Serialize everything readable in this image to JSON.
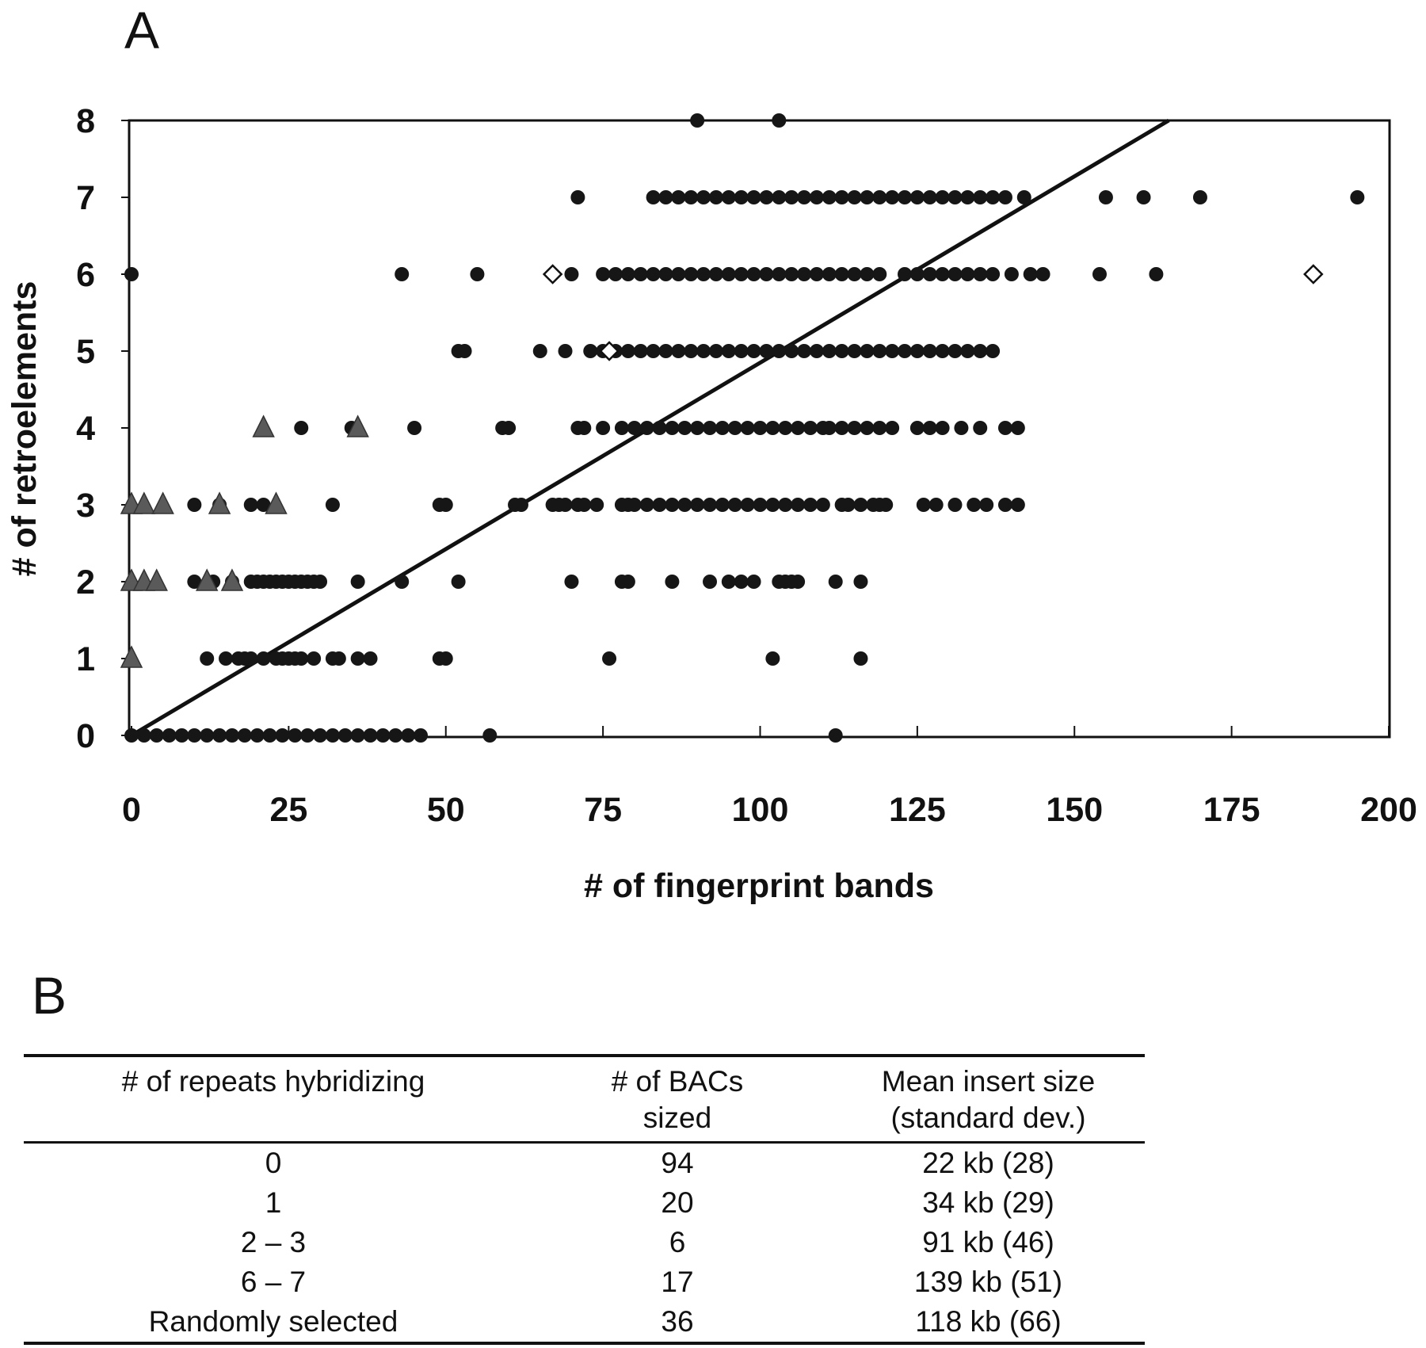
{
  "panel_a_label": "A",
  "panel_b_label": "B",
  "chart_data": {
    "type": "scatter",
    "xlabel": "# of fingerprint bands",
    "ylabel": "# of retroelements",
    "xlim": [
      0,
      200
    ],
    "ylim": [
      0,
      8
    ],
    "xticks": [
      0,
      25,
      50,
      75,
      100,
      125,
      150,
      175,
      200
    ],
    "yticks": [
      0,
      1,
      2,
      3,
      4,
      5,
      6,
      7,
      8
    ],
    "grid": false,
    "legend": "none",
    "colors": {
      "circle": "#161616",
      "triangle": "#5a5a5a",
      "diamond": "#ffffff",
      "line": "#111111"
    },
    "trendline": {
      "x": [
        0,
        165
      ],
      "y": [
        0,
        8
      ]
    },
    "series": [
      {
        "marker": "circle",
        "x": [
          0,
          2,
          4,
          6,
          8,
          10,
          12,
          14,
          16,
          18,
          20,
          22,
          24,
          26,
          28,
          30,
          32,
          34,
          36,
          38,
          40,
          42,
          44,
          46,
          57,
          112,
          12,
          15,
          17,
          18,
          19,
          21,
          23,
          24,
          25,
          26,
          27,
          29,
          32,
          33,
          36,
          38,
          49,
          50,
          76,
          102,
          116,
          10,
          13,
          16,
          19,
          20,
          21,
          22,
          23,
          24,
          25,
          26,
          27,
          28,
          29,
          30,
          36,
          43,
          52,
          70,
          78,
          79,
          86,
          92,
          95,
          97,
          99,
          103,
          104,
          105,
          106,
          112,
          116,
          10,
          14,
          19,
          21,
          32,
          49,
          50,
          61,
          62,
          67,
          68,
          69,
          71,
          72,
          74,
          78,
          79,
          80,
          82,
          84,
          86,
          88,
          90,
          92,
          94,
          96,
          98,
          100,
          102,
          104,
          106,
          108,
          110,
          113,
          114,
          116,
          118,
          119,
          120,
          126,
          128,
          131,
          134,
          136,
          139,
          141,
          27,
          35,
          45,
          59,
          60,
          71,
          72,
          75,
          78,
          80,
          82,
          84,
          86,
          88,
          90,
          92,
          94,
          96,
          98,
          100,
          102,
          104,
          106,
          108,
          110,
          111,
          113,
          115,
          117,
          119,
          121,
          125,
          127,
          129,
          132,
          135,
          139,
          141,
          52,
          53,
          65,
          69,
          73,
          75,
          77,
          79,
          81,
          83,
          85,
          87,
          89,
          91,
          93,
          95,
          97,
          99,
          101,
          103,
          105,
          107,
          109,
          111,
          113,
          115,
          117,
          119,
          121,
          123,
          125,
          127,
          129,
          131,
          133,
          135,
          137,
          0,
          43,
          55,
          70,
          75,
          77,
          79,
          81,
          83,
          85,
          87,
          89,
          91,
          93,
          95,
          97,
          99,
          101,
          103,
          105,
          107,
          109,
          111,
          113,
          115,
          117,
          119,
          123,
          125,
          127,
          129,
          131,
          133,
          135,
          137,
          140,
          143,
          145,
          154,
          163,
          71,
          83,
          85,
          87,
          89,
          91,
          93,
          95,
          97,
          99,
          101,
          103,
          105,
          107,
          109,
          111,
          113,
          115,
          117,
          119,
          121,
          123,
          125,
          127,
          129,
          131,
          133,
          135,
          137,
          139,
          142,
          155,
          161,
          170,
          195,
          90,
          103
        ],
        "y": [
          0,
          0,
          0,
          0,
          0,
          0,
          0,
          0,
          0,
          0,
          0,
          0,
          0,
          0,
          0,
          0,
          0,
          0,
          0,
          0,
          0,
          0,
          0,
          0,
          0,
          0,
          1,
          1,
          1,
          1,
          1,
          1,
          1,
          1,
          1,
          1,
          1,
          1,
          1,
          1,
          1,
          1,
          1,
          1,
          1,
          1,
          1,
          2,
          2,
          2,
          2,
          2,
          2,
          2,
          2,
          2,
          2,
          2,
          2,
          2,
          2,
          2,
          2,
          2,
          2,
          2,
          2,
          2,
          2,
          2,
          2,
          2,
          2,
          2,
          2,
          2,
          2,
          2,
          2,
          3,
          3,
          3,
          3,
          3,
          3,
          3,
          3,
          3,
          3,
          3,
          3,
          3,
          3,
          3,
          3,
          3,
          3,
          3,
          3,
          3,
          3,
          3,
          3,
          3,
          3,
          3,
          3,
          3,
          3,
          3,
          3,
          3,
          3,
          3,
          3,
          3,
          3,
          3,
          3,
          3,
          3,
          3,
          3,
          3,
          3,
          4,
          4,
          4,
          4,
          4,
          4,
          4,
          4,
          4,
          4,
          4,
          4,
          4,
          4,
          4,
          4,
          4,
          4,
          4,
          4,
          4,
          4,
          4,
          4,
          4,
          4,
          4,
          4,
          4,
          4,
          4,
          4,
          4,
          4,
          4,
          4,
          4,
          4,
          5,
          5,
          5,
          5,
          5,
          5,
          5,
          5,
          5,
          5,
          5,
          5,
          5,
          5,
          5,
          5,
          5,
          5,
          5,
          5,
          5,
          5,
          5,
          5,
          5,
          5,
          5,
          5,
          5,
          5,
          5,
          5,
          5,
          5,
          5,
          5,
          5,
          6,
          6,
          6,
          6,
          6,
          6,
          6,
          6,
          6,
          6,
          6,
          6,
          6,
          6,
          6,
          6,
          6,
          6,
          6,
          6,
          6,
          6,
          6,
          6,
          6,
          6,
          6,
          6,
          6,
          6,
          6,
          6,
          6,
          6,
          6,
          6,
          6,
          6,
          6,
          6,
          7,
          7,
          7,
          7,
          7,
          7,
          7,
          7,
          7,
          7,
          7,
          7,
          7,
          7,
          7,
          7,
          7,
          7,
          7,
          7,
          7,
          7,
          7,
          7,
          7,
          7,
          7,
          7,
          7,
          7,
          7,
          7,
          7,
          7,
          7,
          8,
          8
        ]
      },
      {
        "marker": "triangle",
        "x": [
          0,
          0,
          2,
          4,
          12,
          16,
          0,
          2,
          5,
          14,
          23,
          21,
          36
        ],
        "y": [
          1,
          2,
          2,
          2,
          2,
          2,
          3,
          3,
          3,
          3,
          3,
          4,
          4
        ]
      },
      {
        "marker": "diamond",
        "x": [
          76,
          67,
          188
        ],
        "y": [
          5,
          6,
          6
        ]
      }
    ]
  },
  "table": {
    "headers": [
      [
        "# of repeats hybridizing"
      ],
      [
        "# of BACs",
        "sized"
      ],
      [
        "Mean insert size",
        "(standard dev.)"
      ]
    ],
    "rows": [
      [
        "0",
        "94",
        "22 kb (28)"
      ],
      [
        "1",
        "20",
        "34 kb (29)"
      ],
      [
        "2 – 3",
        "6",
        "91 kb (46)"
      ],
      [
        "6 – 7",
        "17",
        "139 kb (51)"
      ],
      [
        "Randomly selected",
        "36",
        "118 kb (66)"
      ]
    ]
  }
}
